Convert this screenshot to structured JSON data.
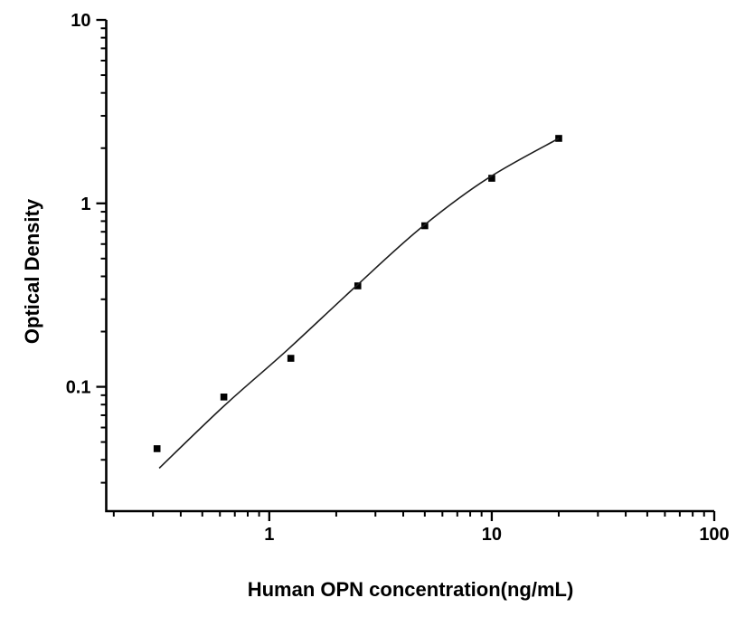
{
  "figure": {
    "background_color": "#ffffff",
    "axis_color": "#000000",
    "marker_color": "#000000",
    "curve_color": "#1c1c1c"
  },
  "chart_data": {
    "type": "scatter",
    "title": "",
    "xlabel": "Human OPN concentration(ng/mL)",
    "ylabel": "Optical Density",
    "x_scale": "log",
    "y_scale": "log",
    "xlim": [
      0.185,
      100
    ],
    "ylim": [
      0.021,
      10
    ],
    "grid": false,
    "legend": "none",
    "x_major_ticks": [
      {
        "value": 1,
        "label": "1"
      },
      {
        "value": 10,
        "label": "10"
      },
      {
        "value": 100,
        "label": "100"
      }
    ],
    "y_major_ticks": [
      {
        "value": 0.1,
        "label": "0.1"
      },
      {
        "value": 1,
        "label": "1"
      },
      {
        "value": 10,
        "label": "10"
      }
    ],
    "series": [
      {
        "name": "standard-points",
        "kind": "scatter",
        "marker": "filled-square",
        "points": [
          {
            "x": 0.313,
            "y": 0.046
          },
          {
            "x": 0.625,
            "y": 0.088
          },
          {
            "x": 1.25,
            "y": 0.143
          },
          {
            "x": 2.5,
            "y": 0.355
          },
          {
            "x": 5,
            "y": 0.755
          },
          {
            "x": 10,
            "y": 1.37
          },
          {
            "x": 20,
            "y": 2.26
          }
        ]
      },
      {
        "name": "fitted-curve",
        "kind": "line",
        "points": [
          {
            "x": 0.32,
            "y": 0.036
          },
          {
            "x": 0.625,
            "y": 0.0785
          },
          {
            "x": 1.2,
            "y": 0.158
          },
          {
            "x": 2.4,
            "y": 0.345
          },
          {
            "x": 4.8,
            "y": 0.735
          },
          {
            "x": 9.6,
            "y": 1.37
          },
          {
            "x": 20,
            "y": 2.26
          }
        ]
      }
    ]
  }
}
